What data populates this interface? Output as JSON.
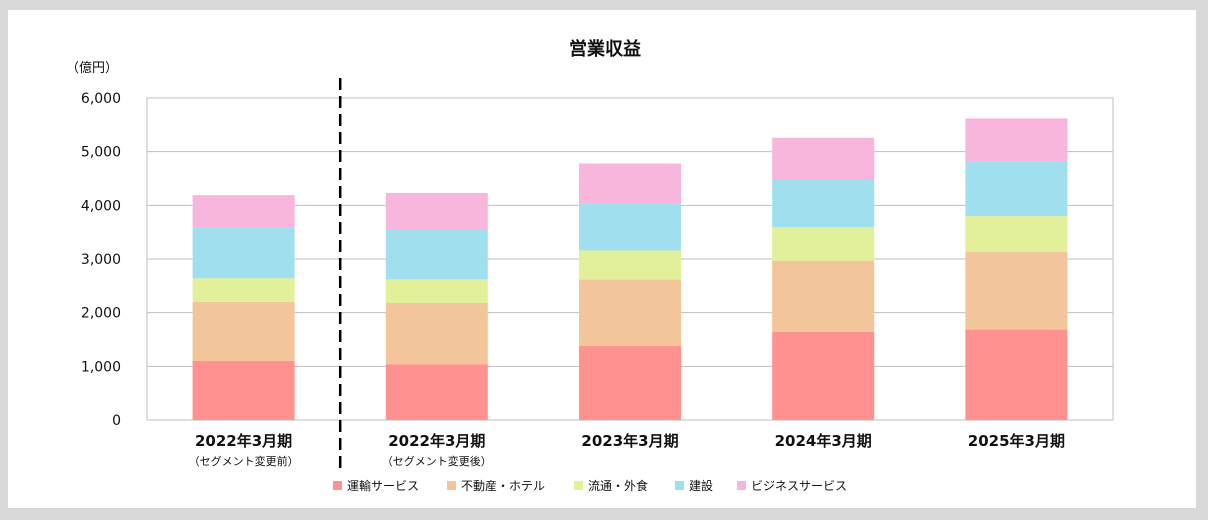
{
  "chart_data": {
    "type": "bar",
    "stacked": true,
    "title": "営業収益",
    "unit_label": "（億円）",
    "ylim": [
      0,
      6000
    ],
    "yticks": [
      0,
      1000,
      2000,
      3000,
      4000,
      5000,
      6000
    ],
    "ytick_labels": [
      "0",
      "1,000",
      "2,000",
      "3,000",
      "4,000",
      "5,000",
      "6,000"
    ],
    "grid": true,
    "legend_position": "bottom",
    "categories": [
      {
        "label": "2022年3月期",
        "sublabel": "（セグメント変更前）"
      },
      {
        "label": "2022年3月期",
        "sublabel": "（セグメント変更後）"
      },
      {
        "label": "2023年3月期",
        "sublabel": ""
      },
      {
        "label": "2024年3月期",
        "sublabel": ""
      },
      {
        "label": "2025年3月期",
        "sublabel": ""
      }
    ],
    "divider_after_category": 0,
    "series": [
      {
        "name": "運輸サービス",
        "color": "#ff9190",
        "values": [
          1100,
          1040,
          1380,
          1640,
          1690
        ]
      },
      {
        "name": "不動産・ホテル",
        "color": "#f3c59b",
        "values": [
          1100,
          1140,
          1240,
          1330,
          1440
        ]
      },
      {
        "name": "流通・外食",
        "color": "#e2f09a",
        "values": [
          440,
          440,
          540,
          620,
          670
        ]
      },
      {
        "name": "建設",
        "color": "#a0dfed",
        "values": [
          950,
          920,
          880,
          900,
          1010
        ]
      },
      {
        "name": "ビジネスサービス",
        "color": "#f8b6dd",
        "values": [
          600,
          690,
          740,
          770,
          810
        ]
      }
    ]
  }
}
